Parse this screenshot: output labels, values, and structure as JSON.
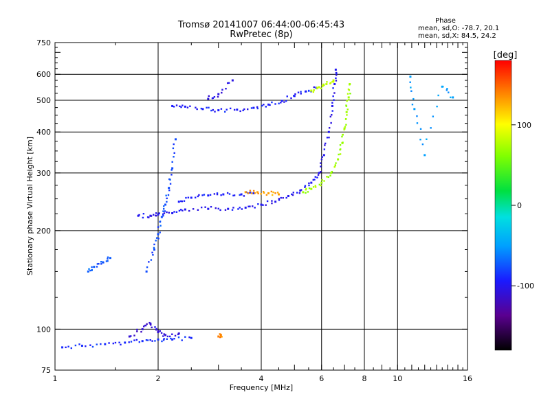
{
  "chart_data": {
    "type": "scatter",
    "title": "Tromsø 20141007 06:44:00-06:45:43",
    "subtitle": "RwPretec (8p)",
    "xlabel": "Frequency [MHz]",
    "ylabel": "Stationary phase Virtual Height [km]",
    "xscale": "log",
    "yscale": "log",
    "xlim": [
      1,
      16
    ],
    "ylim": [
      75,
      750
    ],
    "xticks": [
      "1",
      "2",
      "4",
      "6",
      "8",
      "10",
      "16"
    ],
    "yticks": [
      "75",
      "100",
      "200",
      "300",
      "400",
      "500",
      "600",
      "750"
    ],
    "grid": true,
    "phase_box": {
      "title": "Phase",
      "line1": "mean, sd,O: -78.7, 20.1",
      "line2": "mean, sd,X:  84.5, 24.2"
    },
    "colorbar": {
      "label": "[deg]",
      "ticks": [
        "100",
        "0",
        "-100"
      ],
      "range": [
        -180,
        180
      ]
    },
    "segments": [
      {
        "name": "",
        "phase": -95,
        "points": [
          [
            1.05,
            88
          ],
          [
            1.2,
            89
          ],
          [
            1.4,
            90
          ],
          [
            1.6,
            91
          ],
          [
            1.8,
            92
          ],
          [
            2.0,
            93
          ],
          [
            2.2,
            93
          ],
          [
            2.5,
            94
          ]
        ]
      },
      {
        "name": "",
        "phase": -115,
        "points": [
          [
            1.65,
            95
          ],
          [
            1.8,
            100
          ],
          [
            1.9,
            104
          ],
          [
            2.0,
            98
          ],
          [
            2.1,
            96
          ],
          [
            2.3,
            97
          ]
        ]
      },
      {
        "name": "",
        "phase": -80,
        "points": [
          [
            1.25,
            150
          ],
          [
            1.3,
            155
          ],
          [
            1.38,
            160
          ],
          [
            1.45,
            165
          ]
        ]
      },
      {
        "name": "",
        "phase": -85,
        "points": [
          [
            1.85,
            150
          ],
          [
            1.95,
            175
          ],
          [
            2.0,
            195
          ],
          [
            2.05,
            220
          ],
          [
            2.1,
            240
          ],
          [
            2.15,
            270
          ],
          [
            2.2,
            310
          ],
          [
            2.25,
            380
          ]
        ]
      },
      {
        "name": "",
        "phase": -105,
        "points": [
          [
            1.75,
            222
          ],
          [
            1.9,
            222
          ],
          [
            2.0,
            224
          ],
          [
            2.2,
            226
          ],
          [
            2.4,
            232
          ],
          [
            2.8,
            233
          ],
          [
            3.2,
            233
          ],
          [
            3.6,
            235
          ],
          [
            4.0,
            240
          ],
          [
            4.4,
            245
          ],
          [
            4.8,
            255
          ],
          [
            5.2,
            265
          ],
          [
            5.6,
            280
          ],
          [
            5.9,
            300
          ],
          [
            6.1,
            340
          ],
          [
            6.3,
            400
          ],
          [
            6.45,
            480
          ],
          [
            6.55,
            560
          ],
          [
            6.6,
            620
          ]
        ]
      },
      {
        "name": "",
        "phase": -100,
        "points": [
          [
            2.3,
            245
          ],
          [
            2.5,
            252
          ],
          [
            2.8,
            256
          ],
          [
            3.1,
            258
          ],
          [
            3.5,
            258
          ],
          [
            3.8,
            260
          ]
        ]
      },
      {
        "name": "",
        "phase": 130,
        "points": [
          [
            3.6,
            262
          ],
          [
            3.9,
            262
          ],
          [
            4.2,
            260
          ],
          [
            4.5,
            258
          ]
        ]
      },
      {
        "name": "",
        "phase": -100,
        "points": [
          [
            2.2,
            480
          ],
          [
            2.4,
            478
          ],
          [
            2.7,
            470
          ],
          [
            3.0,
            466
          ],
          [
            3.4,
            468
          ],
          [
            3.8,
            474
          ],
          [
            4.2,
            485
          ],
          [
            4.6,
            498
          ],
          [
            5.0,
            515
          ],
          [
            5.4,
            532
          ],
          [
            5.8,
            545
          ]
        ]
      },
      {
        "name": "",
        "phase": -110,
        "points": [
          [
            2.8,
            505
          ],
          [
            3.0,
            522
          ],
          [
            3.3,
            575
          ]
        ]
      },
      {
        "name": "",
        "phase": 70,
        "points": [
          [
            5.3,
            262
          ],
          [
            5.6,
            268
          ],
          [
            6.0,
            280
          ],
          [
            6.4,
            300
          ],
          [
            6.7,
            330
          ],
          [
            6.9,
            370
          ],
          [
            7.0,
            410
          ],
          [
            7.1,
            460
          ],
          [
            7.2,
            510
          ],
          [
            7.25,
            560
          ]
        ]
      },
      {
        "name": "",
        "phase": 80,
        "points": [
          [
            5.6,
            535
          ],
          [
            5.9,
            548
          ],
          [
            6.2,
            560
          ],
          [
            6.5,
            575
          ]
        ]
      },
      {
        "name": "",
        "phase": -60,
        "points": [
          [
            10.9,
            590
          ],
          [
            11.2,
            470
          ],
          [
            12.0,
            340
          ],
          [
            13.5,
            550
          ],
          [
            14.5,
            510
          ]
        ]
      },
      {
        "name": "",
        "phase": 140,
        "points": [
          [
            3.0,
            95
          ],
          [
            3.05,
            96
          ]
        ]
      }
    ]
  }
}
